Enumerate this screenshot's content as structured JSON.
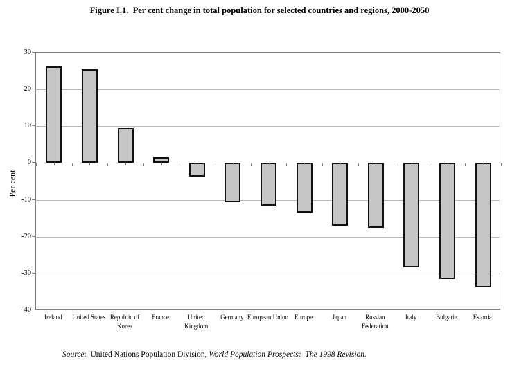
{
  "figure": {
    "title": "Figure I.1.  Per cent change in total population for selected countries and regions, 2000-2050",
    "source": {
      "label_italic": "Source",
      "separator": ":  ",
      "publisher": "United Nations Population Division, ",
      "work_italic": "World Population Prospects:  The 1998 Revision."
    }
  },
  "chart_data": {
    "type": "bar",
    "title": "Figure I.1. Per cent change in total population for selected countries and regions, 2000-2050",
    "xlabel": "",
    "ylabel": "Per cent",
    "ylim": [
      -40,
      30
    ],
    "ytick_interval": 10,
    "yticks": [
      30,
      20,
      10,
      0,
      -10,
      -20,
      -30,
      -40
    ],
    "grid": true,
    "legend": false,
    "bar_fill_color": "#c6c6c6",
    "bar_border_color": "#111111",
    "gridline_color": "#b8b8b8",
    "axis_color": "#7f7f7f",
    "categories": [
      "Ireland",
      "United States",
      "Republic of Korea",
      "France",
      "United Kingdom",
      "Germany",
      "European Union",
      "Europe",
      "Japan",
      "Russian Federation",
      "Italy",
      "Bulgaria",
      "Estonia"
    ],
    "values": [
      26.3,
      25.4,
      9.5,
      1.5,
      -3.6,
      -10.7,
      -11.6,
      -13.5,
      -17.0,
      -17.6,
      -28.3,
      -31.5,
      -33.7
    ]
  }
}
